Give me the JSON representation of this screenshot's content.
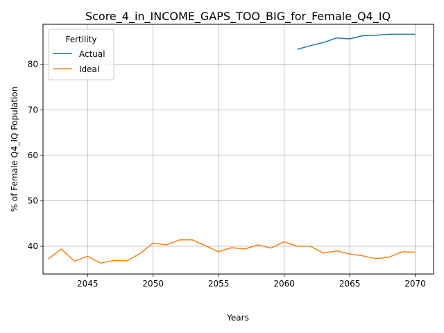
{
  "chart_data": {
    "type": "line",
    "title": "Score_4_in_INCOME_GAPS_TOO_BIG_for_Female_Q4_IQ",
    "xlabel": "Years",
    "ylabel": "% of Female Q4_IQ Population",
    "xlim": [
      2041.6,
      2071.4
    ],
    "ylim": [
      33.9,
      88.8
    ],
    "x_ticks": [
      2045,
      2050,
      2055,
      2060,
      2065,
      2070
    ],
    "y_ticks": [
      40,
      50,
      60,
      70,
      80
    ],
    "grid": true,
    "legend": {
      "title": "Fertility",
      "placement": "top-left"
    },
    "series": [
      {
        "name": "Actual",
        "color": "#1f77b4",
        "x": [
          2061,
          2062,
          2063,
          2064,
          2065,
          2066,
          2067,
          2068,
          2069,
          2070
        ],
        "values": [
          83.3,
          84.1,
          84.8,
          85.8,
          85.6,
          86.3,
          86.4,
          86.6,
          86.6,
          86.6
        ]
      },
      {
        "name": "Ideal",
        "color": "#ff7f0e",
        "x": [
          2042,
          2043,
          2044,
          2045,
          2046,
          2047,
          2048,
          2049,
          2050,
          2051,
          2052,
          2053,
          2054,
          2055,
          2056,
          2057,
          2058,
          2059,
          2060,
          2061,
          2062,
          2063,
          2064,
          2065,
          2066,
          2067,
          2068,
          2069,
          2070
        ],
        "values": [
          37.2,
          39.4,
          36.7,
          37.8,
          36.3,
          36.9,
          36.8,
          38.4,
          40.7,
          40.3,
          41.4,
          41.4,
          40.1,
          38.8,
          39.7,
          39.4,
          40.3,
          39.6,
          41.0,
          40.0,
          40.0,
          38.5,
          39.0,
          38.3,
          37.9,
          37.3,
          37.6,
          38.8,
          38.7
        ]
      }
    ]
  }
}
